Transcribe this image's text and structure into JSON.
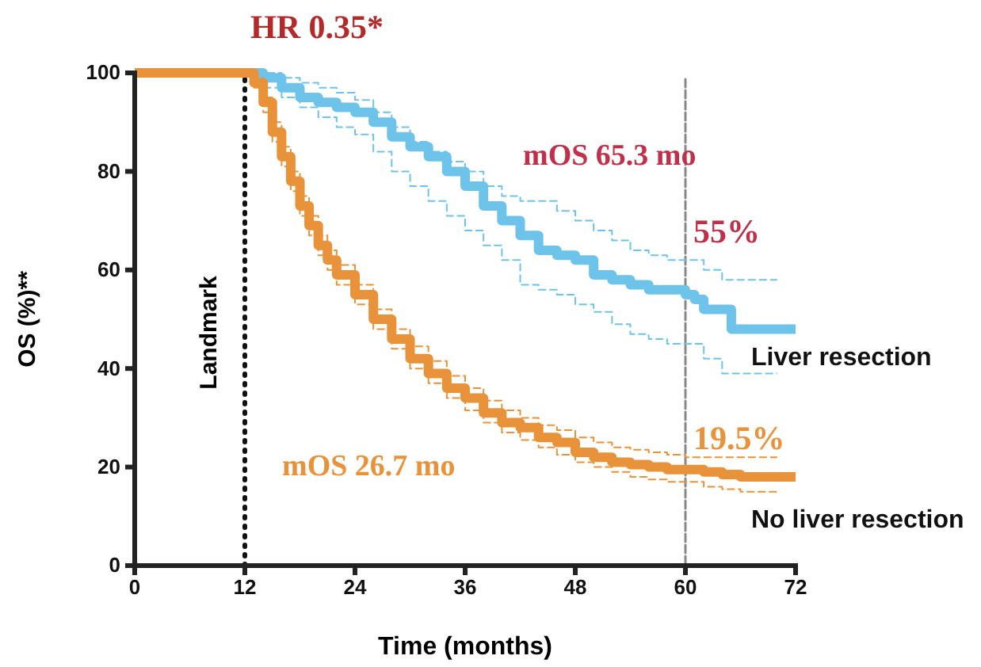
{
  "chart_data": {
    "type": "step",
    "title": "HR 0.35*",
    "xlabel": "Time (months)",
    "ylabel": "OS (%)**",
    "xlim": [
      0,
      72
    ],
    "xticks": [
      0,
      12,
      24,
      36,
      48,
      60,
      72
    ],
    "ylim": [
      0,
      100
    ],
    "yticks": [
      0,
      20,
      40,
      60,
      80,
      100
    ],
    "grid": false,
    "legend": false,
    "marker": "none",
    "line_style": "solid",
    "series": [
      {
        "name": "Liver resection",
        "color": "#6ec3ea",
        "x": [
          0,
          14,
          16,
          18,
          20,
          22,
          24,
          26,
          28,
          30,
          32,
          34,
          36,
          38,
          40,
          42,
          44,
          46,
          48,
          50,
          52,
          54,
          56,
          58,
          60,
          61,
          62,
          64,
          65,
          72
        ],
        "values": [
          100,
          99,
          97,
          95,
          94,
          93,
          92,
          90,
          87,
          85,
          83,
          80,
          77,
          73,
          70,
          67,
          64,
          63,
          62,
          59,
          58,
          57,
          56,
          56,
          55,
          54,
          52,
          52,
          48,
          48
        ]
      },
      {
        "color": "#6ec3ea",
        "line_style": "dashed",
        "x": [
          12,
          14,
          16,
          18,
          20,
          22,
          24,
          26,
          28,
          30,
          32,
          34,
          36,
          38,
          40,
          42,
          44,
          46,
          48,
          50,
          52,
          54,
          56,
          58,
          60,
          62,
          64,
          66,
          70
        ],
        "values": [
          100,
          100,
          99,
          98,
          97,
          96,
          94.5,
          92,
          89,
          86,
          84,
          82,
          80,
          77,
          75,
          74,
          74,
          72,
          70,
          68,
          66,
          64,
          63,
          62,
          62,
          60,
          58,
          58,
          58
        ]
      },
      {
        "color": "#6ec3ea",
        "line_style": "dashed",
        "x": [
          12,
          14,
          16,
          18,
          20,
          22,
          24,
          26,
          28,
          30,
          32,
          34,
          36,
          38,
          40,
          42,
          44,
          46,
          48,
          50,
          52,
          54,
          56,
          58,
          60,
          62,
          64,
          66,
          70
        ],
        "values": [
          100,
          97,
          95,
          93,
          91,
          89,
          87.5,
          84,
          80,
          77,
          74,
          71,
          68,
          65,
          62,
          57,
          56,
          55,
          53,
          51.5,
          49,
          47,
          46,
          45,
          45,
          42,
          39,
          39,
          39
        ]
      },
      {
        "name": "No liver resection",
        "color": "#e8923a",
        "x": [
          0,
          12,
          13,
          14,
          15,
          16,
          17,
          18,
          19,
          20,
          21,
          22,
          24,
          26,
          28,
          30,
          32,
          34,
          36,
          38,
          40,
          42,
          44,
          46,
          48,
          50,
          52,
          54,
          56,
          58,
          60,
          62,
          64,
          66,
          72
        ],
        "values": [
          100,
          100,
          98,
          94,
          88,
          83,
          78,
          73,
          69,
          65,
          62,
          59,
          55,
          50,
          46,
          42,
          39,
          36,
          34,
          31,
          29,
          28,
          26,
          25,
          23,
          22,
          21,
          20.5,
          20,
          19.5,
          19.5,
          19,
          18.5,
          18,
          18
        ]
      },
      {
        "color": "#e8923a",
        "line_style": "dashed",
        "x": [
          12,
          13,
          14,
          15,
          16,
          17,
          18,
          19,
          20,
          21,
          22,
          24,
          26,
          28,
          30,
          32,
          34,
          36,
          38,
          40,
          42,
          44,
          46,
          48,
          50,
          52,
          54,
          56,
          58,
          60,
          62,
          64,
          66,
          70
        ],
        "values": [
          100,
          99,
          95,
          90,
          85,
          80,
          75,
          71,
          67,
          64,
          61,
          57,
          52,
          48,
          44.5,
          41.5,
          38.5,
          36,
          33.5,
          31.5,
          30,
          28.5,
          27.5,
          26,
          25,
          24,
          23.5,
          23,
          22.5,
          22,
          22,
          22,
          22,
          22
        ]
      },
      {
        "color": "#e8923a",
        "line_style": "dashed",
        "x": [
          12,
          13,
          14,
          15,
          16,
          17,
          18,
          19,
          20,
          21,
          22,
          24,
          26,
          28,
          30,
          32,
          34,
          36,
          38,
          40,
          42,
          44,
          46,
          48,
          50,
          52,
          54,
          56,
          58,
          60,
          62,
          64,
          66,
          70
        ],
        "values": [
          100,
          97,
          92,
          86,
          81,
          76,
          71,
          67,
          63,
          60,
          57,
          53,
          48,
          44,
          40,
          37,
          34,
          31.5,
          29,
          27,
          25.5,
          24,
          22.5,
          21,
          20,
          19,
          18,
          17.5,
          17,
          17,
          16,
          15.5,
          15,
          15
        ]
      }
    ],
    "ref_lines": [
      {
        "axis": "x",
        "value": 12,
        "label": "Landmark",
        "color": "#111111",
        "line_style": "dotted"
      },
      {
        "axis": "x",
        "value": 60,
        "color": "#888888",
        "line_style": "dashed"
      }
    ],
    "annotations": [
      "mOS 65.3 mo",
      {
        "text": "55%",
        "x": 60,
        "y": 55
      },
      "mOS 26.7 mo",
      {
        "text": "19.5%",
        "x": 60,
        "y": 19.5
      }
    ]
  }
}
